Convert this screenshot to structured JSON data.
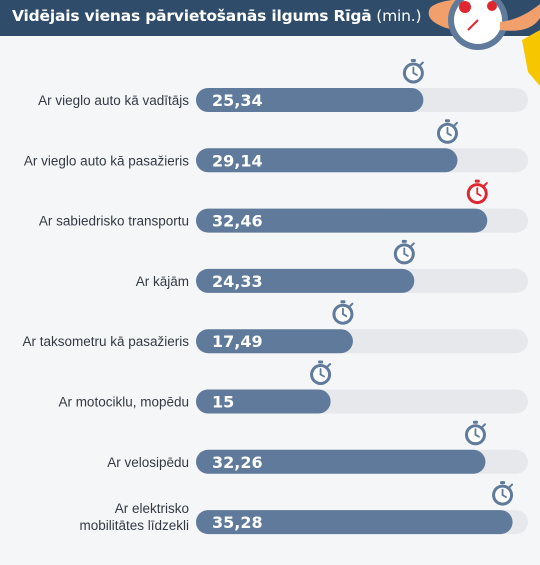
{
  "header": {
    "title_bold": "Vidējais vienas pārvietošanās ilgums Rīgā",
    "title_unit": "(min.)"
  },
  "colors": {
    "header_bg": "#2f4c6b",
    "bar": "#5f7a9a",
    "track": "#e6e8ec",
    "icon_normal": "#5f7a9a",
    "icon_highlight": "#e0262e",
    "accent_yellow": "#f6c600"
  },
  "chart_data": {
    "type": "bar",
    "orientation": "horizontal",
    "title": "Vidējais vienas pārvietošanās ilgums Rīgā (min.)",
    "xlim": [
      0,
      37
    ],
    "categories": [
      "Ar vieglo auto kā vadītājs",
      "Ar vieglo auto kā pasažieris",
      "Ar sabiedrisko transportu",
      "Ar kājām",
      "Ar taksometru kā pasažieris",
      "Ar motociklu, mopēdu",
      "Ar velosipēdu",
      "Ar elektrisko mobilitātes līdzekli"
    ],
    "values": [
      25.34,
      29.14,
      32.46,
      24.33,
      17.49,
      15,
      32.26,
      35.28
    ],
    "value_labels": [
      "25,34",
      "29,14",
      "32,46",
      "24,33",
      "17,49",
      "15",
      "32,26",
      "35,28"
    ],
    "label_lines": [
      [
        "Ar vieglo auto kā vadītājs"
      ],
      [
        "Ar vieglo auto kā pasažieris"
      ],
      [
        "Ar sabiedrisko transportu"
      ],
      [
        "Ar kājām"
      ],
      [
        "Ar taksometru kā pasažieris"
      ],
      [
        "Ar motociklu, mopēdu"
      ],
      [
        "Ar velosipēdu"
      ],
      [
        "Ar elektrisko",
        "mobilitātes līdzekli"
      ]
    ],
    "marker_icons": [
      "stopwatch-icon",
      "stopwatch-icon",
      "stopwatch-icon",
      "stopwatch-icon",
      "stopwatch-icon",
      "stopwatch-icon",
      "stopwatch-icon",
      "stopwatch-icon"
    ],
    "highlighted_index": 2
  }
}
